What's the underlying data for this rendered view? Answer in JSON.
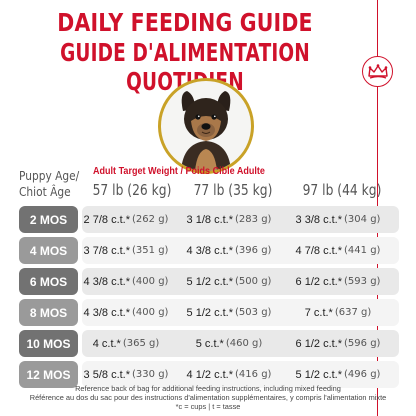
{
  "title_en": "DAILY FEEDING GUIDE",
  "title_fr": "GUIDE D'ALIMENTATION QUOTIDIEN",
  "icons": {
    "badge": "royal-canin-crown-icon",
    "photo": "puppy-photo"
  },
  "colors": {
    "brand_red": "#d0112b",
    "gold": "#c9a227",
    "row_dark": "#727272",
    "row_light": "#9a9a9a",
    "band_dark": "#e9e9e9",
    "band_light": "#f4f4f4"
  },
  "table": {
    "age_header_line1": "Puppy Age/",
    "age_header_line2": "Chiot Âge",
    "weight_header": "Adult Target Weight / Poids Cible Adulte",
    "columns": [
      "57 lb (26 kg)",
      "77 lb (35 kg)",
      "97 lb (44 kg)"
    ],
    "rows": [
      {
        "age": "2 MOS",
        "cells": [
          {
            "amount": "2 7/8 c.t.*",
            "grams": "(262 g)"
          },
          {
            "amount": "3 1/8 c.t.*",
            "grams": "(283 g)"
          },
          {
            "amount": "3 3/8 c.t.*",
            "grams": "(304 g)"
          }
        ]
      },
      {
        "age": "4 MOS",
        "cells": [
          {
            "amount": "3 7/8 c.t.*",
            "grams": "(351 g)"
          },
          {
            "amount": "4 3/8 c.t.*",
            "grams": "(396 g)"
          },
          {
            "amount": "4 7/8 c.t.*",
            "grams": "(441 g)"
          }
        ]
      },
      {
        "age": "6 MOS",
        "cells": [
          {
            "amount": "4 3/8 c.t.*",
            "grams": "(400 g)"
          },
          {
            "amount": "5 1/2 c.t.*",
            "grams": "(500 g)"
          },
          {
            "amount": "6 1/2 c.t.*",
            "grams": "(593 g)"
          }
        ]
      },
      {
        "age": "8 MOS",
        "cells": [
          {
            "amount": "4 3/8 c.t.*",
            "grams": "(400 g)"
          },
          {
            "amount": "5 1/2 c.t.*",
            "grams": "(503 g)"
          },
          {
            "amount": "7 c.t.*",
            "grams": "(637 g)"
          }
        ]
      },
      {
        "age": "10 MOS",
        "cells": [
          {
            "amount": "4 c.t.*",
            "grams": "(365 g)"
          },
          {
            "amount": "5 c.t.*",
            "grams": "(460 g)"
          },
          {
            "amount": "6 1/2 c.t.*",
            "grams": "(596 g)"
          }
        ]
      },
      {
        "age": "12 MOS",
        "cells": [
          {
            "amount": "3 5/8 c.t.*",
            "grams": "(330 g)"
          },
          {
            "amount": "4 1/2 c.t.*",
            "grams": "(416 g)"
          },
          {
            "amount": "5 1/2 c.t.*",
            "grams": "(496 g)"
          }
        ]
      }
    ]
  },
  "footnotes": [
    "Reference back of bag for additional feeding instructions, including mixed feeding",
    "Référence au dos du sac pour des instructions d'alimentation supplémentaires, y compris l'alimentation mixte",
    "*c = cups | t = tasse"
  ]
}
